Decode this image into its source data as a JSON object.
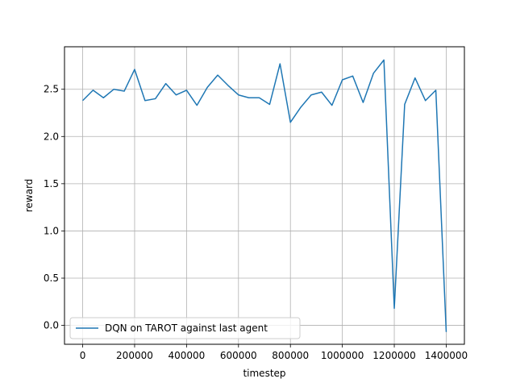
{
  "chart_data": {
    "type": "line",
    "xlabel": "timestep",
    "ylabel": "reward",
    "xlim": [
      -70000,
      1470000
    ],
    "ylim": [
      -0.2,
      2.95
    ],
    "xticks": [
      {
        "value": 0,
        "label": "0"
      },
      {
        "value": 200000,
        "label": "200000"
      },
      {
        "value": 400000,
        "label": "400000"
      },
      {
        "value": 600000,
        "label": "600000"
      },
      {
        "value": 800000,
        "label": "800000"
      },
      {
        "value": 1000000,
        "label": "1000000"
      },
      {
        "value": 1200000,
        "label": "1200000"
      },
      {
        "value": 1400000,
        "label": "1400000"
      }
    ],
    "yticks": [
      {
        "value": 0.0,
        "label": "0.0"
      },
      {
        "value": 0.5,
        "label": "0.5"
      },
      {
        "value": 1.0,
        "label": "1.0"
      },
      {
        "value": 1.5,
        "label": "1.5"
      },
      {
        "value": 2.0,
        "label": "2.0"
      },
      {
        "value": 2.5,
        "label": "2.5"
      }
    ],
    "grid": true,
    "legend_position": "lower-left",
    "series": [
      {
        "name": "DQN on TAROT against last agent",
        "color": "#1f77b4",
        "x": [
          0,
          40000,
          80000,
          120000,
          160000,
          200000,
          240000,
          280000,
          320000,
          360000,
          400000,
          440000,
          480000,
          520000,
          560000,
          600000,
          640000,
          680000,
          720000,
          760000,
          800000,
          840000,
          880000,
          920000,
          960000,
          1000000,
          1040000,
          1080000,
          1120000,
          1160000,
          1200000,
          1240000,
          1280000,
          1320000,
          1360000,
          1400000
        ],
        "y": [
          2.38,
          2.49,
          2.41,
          2.5,
          2.48,
          2.71,
          2.38,
          2.4,
          2.56,
          2.44,
          2.49,
          2.33,
          2.52,
          2.65,
          2.54,
          2.44,
          2.41,
          2.41,
          2.34,
          2.77,
          2.15,
          2.31,
          2.44,
          2.47,
          2.33,
          2.6,
          2.64,
          2.36,
          2.67,
          2.81,
          0.18,
          2.34,
          2.62,
          2.38,
          2.49,
          -0.07
        ]
      }
    ]
  }
}
